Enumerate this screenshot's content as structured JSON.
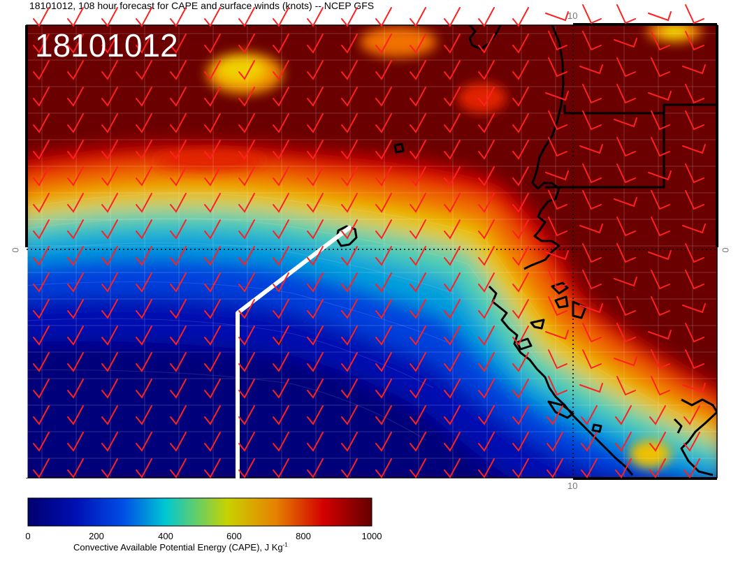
{
  "title": "18101012, 108 hour forecast for CAPE and surface winds (knots) -- NCEP GFS",
  "stamp": "18101012",
  "axis_labels": {
    "lon_top": "10",
    "lon_bottom": "10",
    "lat_left": "0",
    "lat_right": "0"
  },
  "colorbar": {
    "ticks": [
      "0",
      "200",
      "400",
      "600",
      "800",
      "1000"
    ],
    "label_main": "Convective Available Potential Energy (CAPE), J Kg",
    "label_sup": "-1",
    "min": 0,
    "max": 1000,
    "stops": [
      "#00006e",
      "#0018c8",
      "#00c8d2",
      "#d2d200",
      "#d20000",
      "#640000"
    ]
  },
  "colors": {
    "wind_barb": "#ff2020",
    "coastline": "#000000",
    "track": "#ffffff"
  }
}
